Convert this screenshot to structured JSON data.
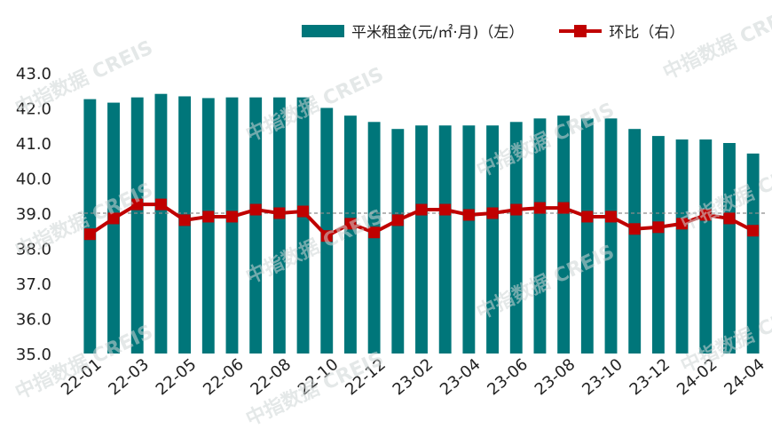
{
  "legend": {
    "bar_label": "平米租金(元/㎡·月)（左）",
    "line_label": "环比（右）"
  },
  "colors": {
    "bar": "#00767a",
    "line": "#c00000",
    "refline": "#8c8c8c"
  },
  "watermark": "中指数据 CREIS",
  "chart_data": {
    "type": "bar",
    "categories": [
      "22-01",
      "22-02",
      "22-03",
      "22-04",
      "22-05",
      "22-06",
      "22-06",
      "22-07",
      "22-08",
      "22-09",
      "22-10",
      "22-11",
      "22-12",
      "23-01",
      "23-02",
      "23-03",
      "23-04",
      "23-05",
      "23-06",
      "23-07",
      "23-08",
      "23-09",
      "23-10",
      "23-11",
      "23-12",
      "24-01",
      "24-02",
      "24-03",
      "24-04"
    ],
    "x_tick_labels": [
      "22-01",
      "22-03",
      "22-05",
      "22-06",
      "22-08",
      "22-10",
      "22-12",
      "23-02",
      "23-04",
      "23-06",
      "23-08",
      "23-10",
      "23-12",
      "24-02",
      "24-04"
    ],
    "series": [
      {
        "name": "平米租金(元/㎡·月)（左）",
        "type": "bar",
        "axis": "left",
        "values": [
          42.25,
          42.15,
          42.3,
          42.4,
          42.33,
          42.28,
          42.3,
          42.3,
          42.3,
          42.3,
          42.0,
          41.78,
          41.6,
          41.4,
          41.5,
          41.5,
          41.5,
          41.5,
          41.6,
          41.7,
          41.78,
          41.7,
          41.7,
          41.4,
          41.2,
          41.1,
          41.1,
          41.0,
          40.7
        ]
      },
      {
        "name": "环比（右）",
        "type": "line",
        "axis": "right",
        "values": [
          38.4,
          38.85,
          39.25,
          39.25,
          38.8,
          38.9,
          38.9,
          39.1,
          39.0,
          39.05,
          38.35,
          38.7,
          38.45,
          38.8,
          39.1,
          39.1,
          38.95,
          39.0,
          39.1,
          39.15,
          39.15,
          38.9,
          38.9,
          38.55,
          38.6,
          38.7,
          38.95,
          38.85,
          38.5
        ]
      }
    ],
    "reference_line": 39.0,
    "y_ticks": [
      "35.0",
      "36.0",
      "37.0",
      "38.0",
      "39.0",
      "40.0",
      "41.0",
      "42.0",
      "43.0"
    ],
    "ylim": [
      35,
      43
    ],
    "grid": false,
    "legend_position": "top-right"
  }
}
